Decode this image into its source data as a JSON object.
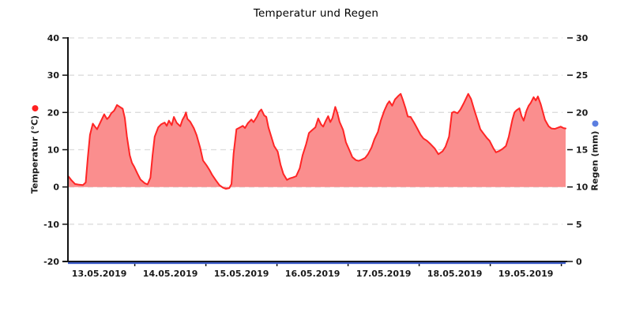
{
  "chart_data": {
    "type": "area",
    "title": "Temperatur und Regen",
    "x_axis": {
      "unit": "days since 13.05.2019 00:00",
      "domain": [
        0.06,
        7.06
      ],
      "day_tick_boundaries": [
        1,
        2,
        3,
        4,
        5,
        6,
        7
      ],
      "date_labels": [
        "13.05.2019",
        "14.05.2019",
        "15.05.2019",
        "16.05.2019",
        "17.05.2019",
        "18.05.2019",
        "19.05.2019"
      ]
    },
    "y_left": {
      "label": "Temperatur (°C)",
      "min": -20,
      "max": 40,
      "ticks": [
        40,
        30,
        20,
        10,
        0,
        -10,
        -20
      ],
      "marker_color": "#ff2020"
    },
    "y_right": {
      "label": "Regen (mm)",
      "min": 0,
      "max": 30,
      "ticks": [
        30,
        25,
        20,
        15,
        10,
        5,
        0
      ],
      "marker_color": "#5b7ee0"
    },
    "grid": {
      "dashed": true,
      "color": "#dcdcdc",
      "values_left_axis": [
        40,
        30,
        20,
        10,
        0,
        -10
      ]
    },
    "series": [
      {
        "name": "Temperatur",
        "type": "area+line",
        "axis": "left",
        "line_color": "#ff2525",
        "fill_color": "#fa8e8e",
        "baseline": 0,
        "points": [
          [
            0.06,
            3.0
          ],
          [
            0.11,
            1.8
          ],
          [
            0.16,
            0.8
          ],
          [
            0.22,
            0.6
          ],
          [
            0.27,
            0.5
          ],
          [
            0.31,
            1.2
          ],
          [
            0.34,
            8.0
          ],
          [
            0.37,
            14.0
          ],
          [
            0.41,
            17.0
          ],
          [
            0.44,
            16.2
          ],
          [
            0.47,
            15.5
          ],
          [
            0.52,
            17.5
          ],
          [
            0.57,
            19.5
          ],
          [
            0.61,
            18.2
          ],
          [
            0.64,
            18.8
          ],
          [
            0.67,
            19.8
          ],
          [
            0.71,
            20.5
          ],
          [
            0.75,
            22.0
          ],
          [
            0.79,
            21.5
          ],
          [
            0.83,
            21.0
          ],
          [
            0.86,
            18.5
          ],
          [
            0.89,
            13.5
          ],
          [
            0.93,
            8.5
          ],
          [
            0.96,
            6.5
          ],
          [
            0.99,
            5.5
          ],
          [
            1.04,
            3.5
          ],
          [
            1.08,
            2.0
          ],
          [
            1.14,
            1.0
          ],
          [
            1.18,
            0.7
          ],
          [
            1.22,
            2.5
          ],
          [
            1.25,
            8.5
          ],
          [
            1.28,
            13.5
          ],
          [
            1.33,
            16.0
          ],
          [
            1.37,
            16.8
          ],
          [
            1.42,
            17.3
          ],
          [
            1.45,
            16.4
          ],
          [
            1.48,
            17.8
          ],
          [
            1.52,
            16.6
          ],
          [
            1.55,
            18.8
          ],
          [
            1.59,
            17.2
          ],
          [
            1.64,
            16.3
          ],
          [
            1.67,
            18.0
          ],
          [
            1.7,
            19.0
          ],
          [
            1.72,
            20.0
          ],
          [
            1.74,
            18.3
          ],
          [
            1.78,
            17.5
          ],
          [
            1.83,
            15.8
          ],
          [
            1.87,
            13.9
          ],
          [
            1.92,
            10.5
          ],
          [
            1.96,
            7.1
          ],
          [
            2.01,
            5.8
          ],
          [
            2.05,
            4.6
          ],
          [
            2.09,
            3.2
          ],
          [
            2.14,
            1.8
          ],
          [
            2.19,
            0.5
          ],
          [
            2.24,
            -0.2
          ],
          [
            2.28,
            -0.5
          ],
          [
            2.33,
            -0.3
          ],
          [
            2.36,
            0.8
          ],
          [
            2.39,
            9.0
          ],
          [
            2.43,
            15.5
          ],
          [
            2.47,
            15.9
          ],
          [
            2.52,
            16.4
          ],
          [
            2.55,
            15.8
          ],
          [
            2.59,
            17.1
          ],
          [
            2.64,
            18.1
          ],
          [
            2.67,
            17.4
          ],
          [
            2.72,
            18.9
          ],
          [
            2.75,
            20.2
          ],
          [
            2.78,
            20.8
          ],
          [
            2.82,
            19.2
          ],
          [
            2.85,
            18.8
          ],
          [
            2.88,
            16.0
          ],
          [
            2.92,
            13.5
          ],
          [
            2.96,
            11.0
          ],
          [
            3.01,
            9.5
          ],
          [
            3.05,
            6.0
          ],
          [
            3.09,
            3.5
          ],
          [
            3.14,
            1.9
          ],
          [
            3.18,
            2.3
          ],
          [
            3.23,
            2.6
          ],
          [
            3.27,
            2.9
          ],
          [
            3.32,
            5.0
          ],
          [
            3.36,
            8.5
          ],
          [
            3.41,
            11.5
          ],
          [
            3.45,
            14.5
          ],
          [
            3.49,
            15.2
          ],
          [
            3.54,
            16.0
          ],
          [
            3.58,
            18.4
          ],
          [
            3.62,
            16.8
          ],
          [
            3.65,
            16.2
          ],
          [
            3.68,
            17.5
          ],
          [
            3.72,
            19.0
          ],
          [
            3.75,
            17.4
          ],
          [
            3.78,
            18.5
          ],
          [
            3.82,
            21.5
          ],
          [
            3.85,
            19.8
          ],
          [
            3.88,
            17.5
          ],
          [
            3.93,
            15.3
          ],
          [
            3.97,
            12.0
          ],
          [
            4.02,
            9.8
          ],
          [
            4.06,
            8.0
          ],
          [
            4.11,
            7.2
          ],
          [
            4.15,
            7.0
          ],
          [
            4.19,
            7.3
          ],
          [
            4.24,
            7.8
          ],
          [
            4.28,
            8.8
          ],
          [
            4.33,
            10.6
          ],
          [
            4.37,
            12.8
          ],
          [
            4.42,
            14.8
          ],
          [
            4.46,
            17.8
          ],
          [
            4.51,
            20.5
          ],
          [
            4.55,
            22.2
          ],
          [
            4.58,
            23.0
          ],
          [
            4.62,
            21.8
          ],
          [
            4.66,
            23.5
          ],
          [
            4.71,
            24.5
          ],
          [
            4.74,
            25.0
          ],
          [
            4.77,
            23.4
          ],
          [
            4.81,
            21.0
          ],
          [
            4.84,
            18.9
          ],
          [
            4.88,
            18.8
          ],
          [
            4.93,
            17.2
          ],
          [
            4.97,
            15.8
          ],
          [
            5.02,
            14.0
          ],
          [
            5.06,
            13.0
          ],
          [
            5.11,
            12.4
          ],
          [
            5.16,
            11.5
          ],
          [
            5.22,
            10.3
          ],
          [
            5.27,
            8.8
          ],
          [
            5.33,
            9.6
          ],
          [
            5.37,
            10.8
          ],
          [
            5.42,
            13.5
          ],
          [
            5.46,
            19.9
          ],
          [
            5.49,
            20.2
          ],
          [
            5.54,
            19.8
          ],
          [
            5.58,
            20.8
          ],
          [
            5.63,
            22.6
          ],
          [
            5.66,
            23.8
          ],
          [
            5.69,
            25.0
          ],
          [
            5.73,
            23.6
          ],
          [
            5.77,
            21.0
          ],
          [
            5.82,
            18.0
          ],
          [
            5.86,
            15.5
          ],
          [
            5.91,
            14.2
          ],
          [
            5.95,
            13.2
          ],
          [
            5.99,
            12.4
          ],
          [
            6.04,
            10.5
          ],
          [
            6.08,
            9.3
          ],
          [
            6.13,
            9.7
          ],
          [
            6.17,
            10.2
          ],
          [
            6.22,
            11.0
          ],
          [
            6.26,
            13.5
          ],
          [
            6.31,
            18.0
          ],
          [
            6.34,
            20.0
          ],
          [
            6.37,
            20.6
          ],
          [
            6.41,
            21.1
          ],
          [
            6.44,
            19.0
          ],
          [
            6.47,
            17.8
          ],
          [
            6.51,
            20.5
          ],
          [
            6.54,
            21.8
          ],
          [
            6.57,
            22.6
          ],
          [
            6.61,
            24.1
          ],
          [
            6.64,
            23.2
          ],
          [
            6.67,
            24.3
          ],
          [
            6.71,
            22.2
          ],
          [
            6.74,
            20.1
          ],
          [
            6.77,
            18.0
          ],
          [
            6.82,
            16.3
          ],
          [
            6.86,
            15.7
          ],
          [
            6.91,
            15.6
          ],
          [
            6.95,
            15.9
          ],
          [
            6.99,
            16.2
          ],
          [
            7.03,
            15.8
          ],
          [
            7.06,
            15.7
          ]
        ]
      },
      {
        "name": "Regen",
        "type": "line",
        "axis": "right",
        "line_color": "#3c5bc8",
        "points": [
          [
            0.06,
            0
          ],
          [
            7.06,
            0
          ]
        ]
      }
    ]
  }
}
